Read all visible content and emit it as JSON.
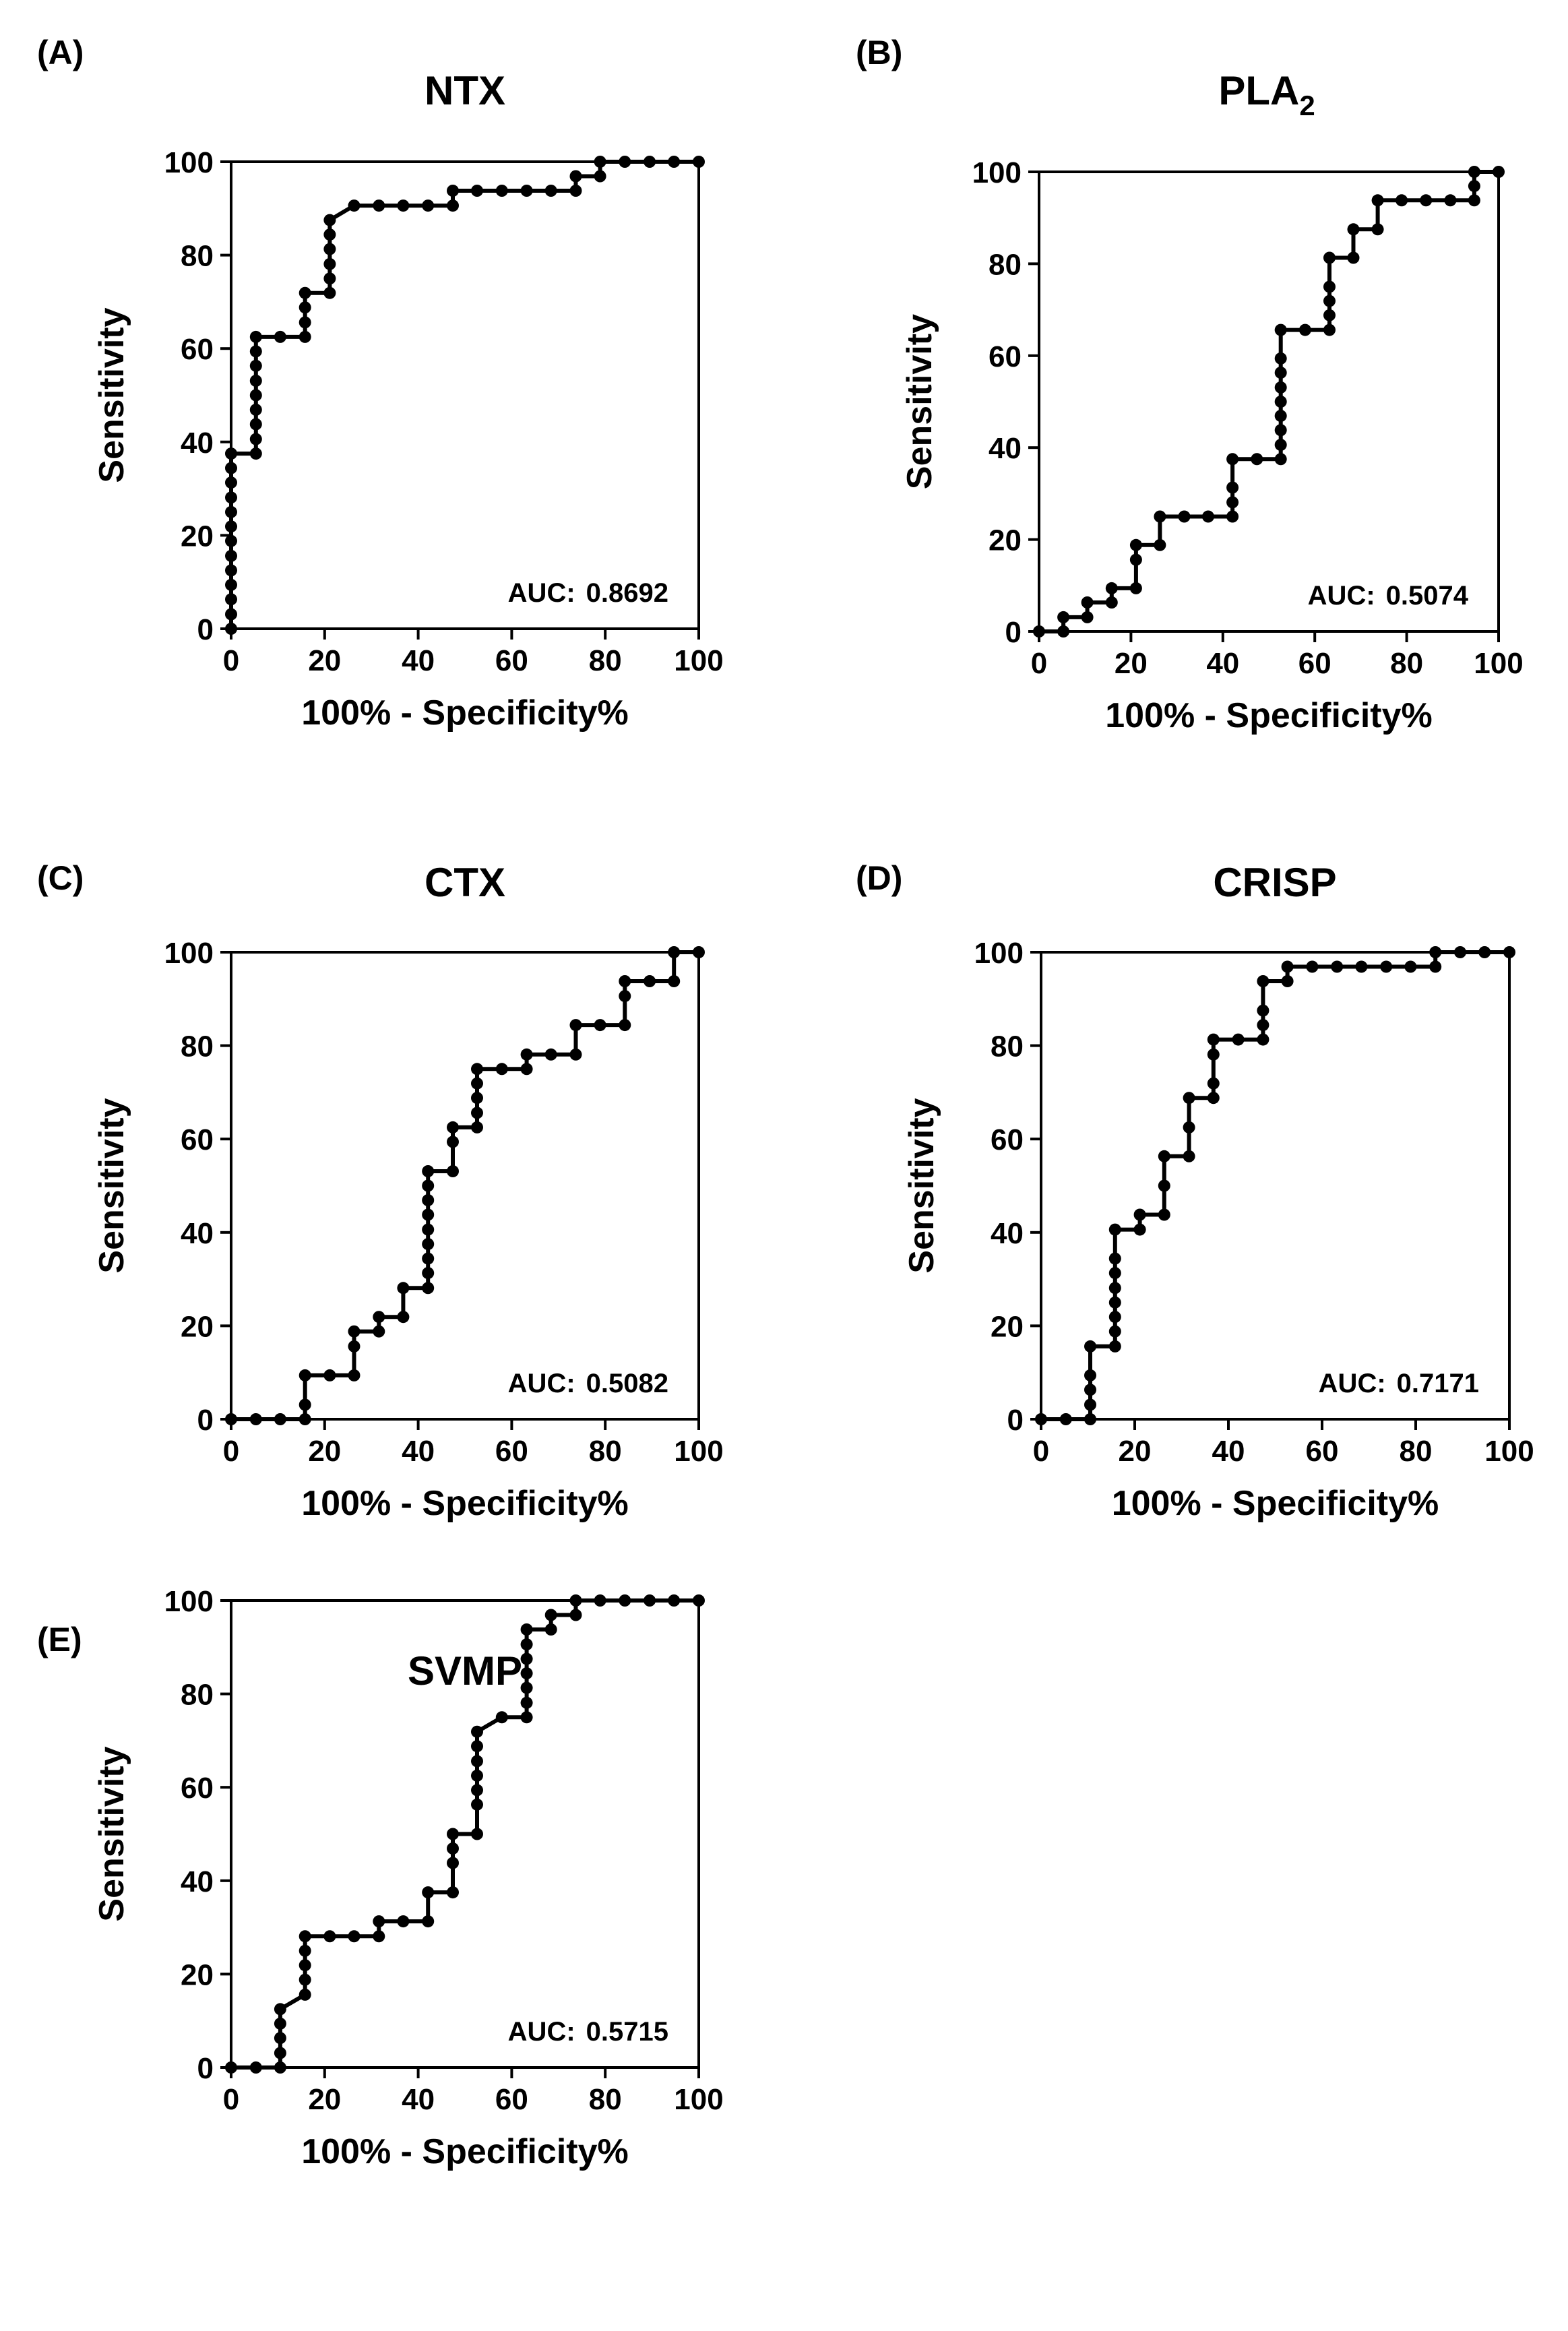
{
  "figure": {
    "x_axis_label": "100% - Specificity%",
    "y_axis_label": "Sensitivity",
    "auc_prefix": "AUC:"
  },
  "chart_data": [
    {
      "type": "line",
      "panel_label": "(A)",
      "title": "NTX",
      "title_subscript": "",
      "xlabel": "100% - Specificity%",
      "ylabel": "Sensitivity",
      "xlim": [
        0,
        100
      ],
      "ylim": [
        0,
        100
      ],
      "xticks": [
        "0",
        "20",
        "40",
        "60",
        "80",
        "100"
      ],
      "yticks": [
        "0",
        "20",
        "40",
        "60",
        "80",
        "100"
      ],
      "auc": "0.8692",
      "grid": false,
      "series": [
        {
          "name": "NTX",
          "x": [
            0,
            0,
            0,
            0,
            0,
            0,
            0,
            0,
            0,
            0,
            0,
            0,
            0,
            5.3,
            5.3,
            5.3,
            5.3,
            5.3,
            5.3,
            5.3,
            5.3,
            5.3,
            10.5,
            15.8,
            15.8,
            15.8,
            15.8,
            21.1,
            21.1,
            21.1,
            21.1,
            21.1,
            21.1,
            26.3,
            31.6,
            36.8,
            42.1,
            47.4,
            47.4,
            52.6,
            57.9,
            63.2,
            68.4,
            73.7,
            73.7,
            78.9,
            78.9,
            84.2,
            89.5,
            94.7,
            100
          ],
          "y": [
            0,
            3.1,
            6.3,
            9.4,
            12.5,
            15.6,
            18.8,
            21.9,
            25,
            28.1,
            31.3,
            34.4,
            37.5,
            37.5,
            40.6,
            43.8,
            46.9,
            50,
            53.1,
            56.3,
            59.4,
            62.5,
            62.5,
            62.5,
            65.6,
            68.8,
            71.9,
            71.9,
            75,
            78.1,
            81.3,
            84.4,
            87.5,
            90.6,
            90.6,
            90.6,
            90.6,
            90.6,
            93.8,
            93.8,
            93.8,
            93.8,
            93.8,
            93.8,
            96.9,
            96.9,
            100,
            100,
            100,
            100,
            100
          ]
        }
      ]
    },
    {
      "type": "line",
      "panel_label": "(B)",
      "title": "PLA",
      "title_subscript": "2",
      "xlabel": "100% - Specificity%",
      "ylabel": "Sensitivity",
      "xlim": [
        0,
        100
      ],
      "ylim": [
        0,
        100
      ],
      "xticks": [
        "0",
        "20",
        "40",
        "60",
        "80",
        "100"
      ],
      "yticks": [
        "0",
        "20",
        "40",
        "60",
        "80",
        "100"
      ],
      "auc": "0.5074",
      "grid": false,
      "series": [
        {
          "name": "PLA2",
          "x": [
            0,
            5.3,
            5.3,
            10.5,
            10.5,
            15.8,
            15.8,
            21.1,
            21.1,
            21.1,
            26.3,
            26.3,
            31.6,
            36.8,
            42.1,
            42.1,
            42.1,
            42.1,
            47.4,
            52.6,
            52.6,
            52.6,
            52.6,
            52.6,
            52.6,
            52.6,
            52.6,
            52.6,
            57.9,
            63.2,
            63.2,
            63.2,
            63.2,
            63.2,
            68.4,
            68.4,
            73.7,
            73.7,
            78.9,
            84.2,
            89.5,
            94.7,
            94.7,
            94.7,
            100
          ],
          "y": [
            0,
            0,
            3.1,
            3.1,
            6.3,
            6.3,
            9.4,
            9.4,
            15.6,
            18.8,
            18.8,
            25,
            25,
            25,
            25,
            28.1,
            31.3,
            37.5,
            37.5,
            37.5,
            40.6,
            43.8,
            46.9,
            50,
            53.1,
            56.3,
            59.4,
            65.6,
            65.6,
            65.6,
            68.8,
            71.9,
            75,
            81.3,
            81.3,
            87.5,
            87.5,
            93.8,
            93.8,
            93.8,
            93.8,
            93.8,
            96.9,
            100,
            100
          ]
        }
      ]
    },
    {
      "type": "line",
      "panel_label": "(C)",
      "title": "CTX",
      "title_subscript": "",
      "xlabel": "100% - Specificity%",
      "ylabel": "Sensitivity",
      "xlim": [
        0,
        100
      ],
      "ylim": [
        0,
        100
      ],
      "xticks": [
        "0",
        "20",
        "40",
        "60",
        "80",
        "100"
      ],
      "yticks": [
        "0",
        "20",
        "40",
        "60",
        "80",
        "100"
      ],
      "auc": "0.5082",
      "grid": false,
      "series": [
        {
          "name": "CTX",
          "x": [
            0,
            5.3,
            10.5,
            15.8,
            15.8,
            15.8,
            21.1,
            26.3,
            26.3,
            26.3,
            31.6,
            31.6,
            36.8,
            36.8,
            42.1,
            42.1,
            42.1,
            42.1,
            42.1,
            42.1,
            42.1,
            42.1,
            42.1,
            47.4,
            47.4,
            47.4,
            52.6,
            52.6,
            52.6,
            52.6,
            52.6,
            57.9,
            63.2,
            63.2,
            68.4,
            73.7,
            73.7,
            78.9,
            84.2,
            84.2,
            84.2,
            89.5,
            94.7,
            94.7,
            100
          ],
          "y": [
            0,
            0,
            0,
            0,
            3.1,
            9.4,
            9.4,
            9.4,
            15.6,
            18.8,
            18.8,
            21.9,
            21.9,
            28.1,
            28.1,
            31.3,
            34.4,
            37.5,
            40.6,
            43.8,
            46.9,
            50,
            53.1,
            53.1,
            59.4,
            62.5,
            62.5,
            65.6,
            68.8,
            71.9,
            75,
            75,
            75,
            78.1,
            78.1,
            78.1,
            84.4,
            84.4,
            84.4,
            90.6,
            93.8,
            93.8,
            93.8,
            100,
            100
          ]
        }
      ]
    },
    {
      "type": "line",
      "panel_label": "(D)",
      "title": "CRISP",
      "title_subscript": "",
      "xlabel": "100% - Specificity%",
      "ylabel": "Sensitivity",
      "xlim": [
        0,
        100
      ],
      "ylim": [
        0,
        100
      ],
      "xticks": [
        "0",
        "20",
        "40",
        "60",
        "80",
        "100"
      ],
      "yticks": [
        "0",
        "20",
        "40",
        "60",
        "80",
        "100"
      ],
      "auc": "0.7171",
      "grid": false,
      "series": [
        {
          "name": "CRISP",
          "x": [
            0,
            5.3,
            10.5,
            10.5,
            10.5,
            10.5,
            10.5,
            15.8,
            15.8,
            15.8,
            15.8,
            15.8,
            15.8,
            15.8,
            15.8,
            21.1,
            21.1,
            26.3,
            26.3,
            26.3,
            31.6,
            31.6,
            31.6,
            36.8,
            36.8,
            36.8,
            36.8,
            42.1,
            47.4,
            47.4,
            47.4,
            47.4,
            52.6,
            52.6,
            57.9,
            63.2,
            68.4,
            73.7,
            78.9,
            84.2,
            84.2,
            89.5,
            94.7,
            100
          ],
          "y": [
            0,
            0,
            0,
            3.1,
            6.3,
            9.4,
            15.6,
            15.6,
            18.8,
            21.9,
            25,
            28.1,
            31.3,
            34.4,
            40.6,
            40.6,
            43.8,
            43.8,
            50,
            56.3,
            56.3,
            62.5,
            68.8,
            68.8,
            71.9,
            78.1,
            81.3,
            81.3,
            81.3,
            84.4,
            87.5,
            93.8,
            93.8,
            96.9,
            96.9,
            96.9,
            96.9,
            96.9,
            96.9,
            96.9,
            100,
            100,
            100,
            100
          ]
        }
      ]
    },
    {
      "type": "line",
      "panel_label": "(E)",
      "title": "SVMP",
      "title_subscript": "",
      "xlabel": "100% - Specificity%",
      "ylabel": "Sensitivity",
      "xlim": [
        0,
        100
      ],
      "ylim": [
        0,
        100
      ],
      "xticks": [
        "0",
        "20",
        "40",
        "60",
        "80",
        "100"
      ],
      "yticks": [
        "0",
        "20",
        "40",
        "60",
        "80",
        "100"
      ],
      "auc": "0.5715",
      "grid": false,
      "series": [
        {
          "name": "SVMP",
          "x": [
            0,
            5.3,
            10.5,
            10.5,
            10.5,
            10.5,
            10.5,
            15.8,
            15.8,
            15.8,
            15.8,
            15.8,
            21.1,
            26.3,
            31.6,
            31.6,
            36.8,
            42.1,
            42.1,
            47.4,
            47.4,
            47.4,
            47.4,
            52.6,
            52.6,
            52.6,
            52.6,
            52.6,
            52.6,
            52.6,
            57.9,
            63.2,
            63.2,
            63.2,
            63.2,
            63.2,
            63.2,
            63.2,
            68.4,
            68.4,
            73.7,
            73.7,
            78.9,
            84.2,
            89.5,
            94.7,
            100
          ],
          "y": [
            0,
            0,
            0,
            3.1,
            6.3,
            9.4,
            12.5,
            15.6,
            18.8,
            21.9,
            25,
            28.1,
            28.1,
            28.1,
            28.1,
            31.3,
            31.3,
            31.3,
            37.5,
            37.5,
            43.8,
            46.9,
            50,
            50,
            56.3,
            59.4,
            62.5,
            65.6,
            68.8,
            71.9,
            75,
            75,
            78.1,
            81.3,
            84.4,
            87.5,
            90.6,
            93.8,
            93.8,
            96.9,
            96.9,
            100,
            100,
            100,
            100,
            100,
            100
          ]
        }
      ]
    }
  ]
}
